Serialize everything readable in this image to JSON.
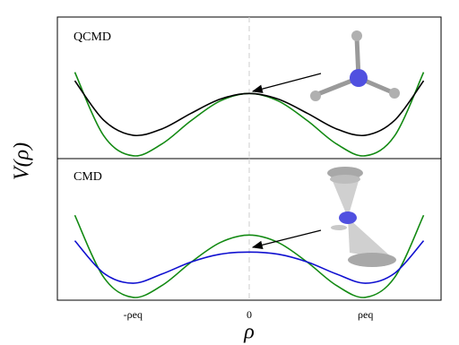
{
  "chart_data": [
    {
      "type": "line",
      "title": "QCMD",
      "ylabel": "V(ρ)",
      "x": [
        -1.5,
        -1.25,
        -1,
        -0.75,
        -0.5,
        -0.25,
        0,
        0.25,
        0.5,
        0.75,
        1,
        1.25,
        1.5
      ],
      "series": [
        {
          "color": "#138a13",
          "values": [
            6.1,
            1.6,
            0.2,
            1.04,
            2.68,
            4.07,
            4.6,
            4.07,
            2.68,
            1.04,
            0.2,
            1.6,
            6.1
          ]
        },
        {
          "color": "#000000",
          "values": [
            5.5,
            2.7,
            1.65,
            2.1,
            3.2,
            4.2,
            4.6,
            4.2,
            3.2,
            2.1,
            1.65,
            2.7,
            5.5
          ]
        }
      ],
      "xlim": [
        -1.65,
        1.65
      ],
      "ylim": [
        0,
        10
      ]
    },
    {
      "type": "line",
      "title": "CMD",
      "xlabel": "ρ",
      "x": [
        -1.5,
        -1.25,
        -1,
        -0.75,
        -0.5,
        -0.25,
        0,
        0.25,
        0.5,
        0.75,
        1,
        1.25,
        1.5
      ],
      "series": [
        {
          "color": "#138a13",
          "values": [
            6.0,
            1.6,
            0.2,
            1.04,
            2.68,
            4.07,
            4.6,
            4.07,
            2.68,
            1.04,
            0.2,
            1.6,
            6.0
          ]
        },
        {
          "color": "#1010d0",
          "values": [
            4.2,
            1.9,
            1.2,
            1.85,
            2.7,
            3.25,
            3.4,
            3.25,
            2.7,
            1.85,
            1.2,
            1.9,
            4.2
          ]
        }
      ],
      "xlim": [
        -1.65,
        1.65
      ],
      "ylim": [
        0,
        10
      ],
      "xticks": [
        {
          "value": -1,
          "label": "-ρeq"
        },
        0,
        {
          "value": 1,
          "label": "ρeq"
        }
      ]
    }
  ]
}
